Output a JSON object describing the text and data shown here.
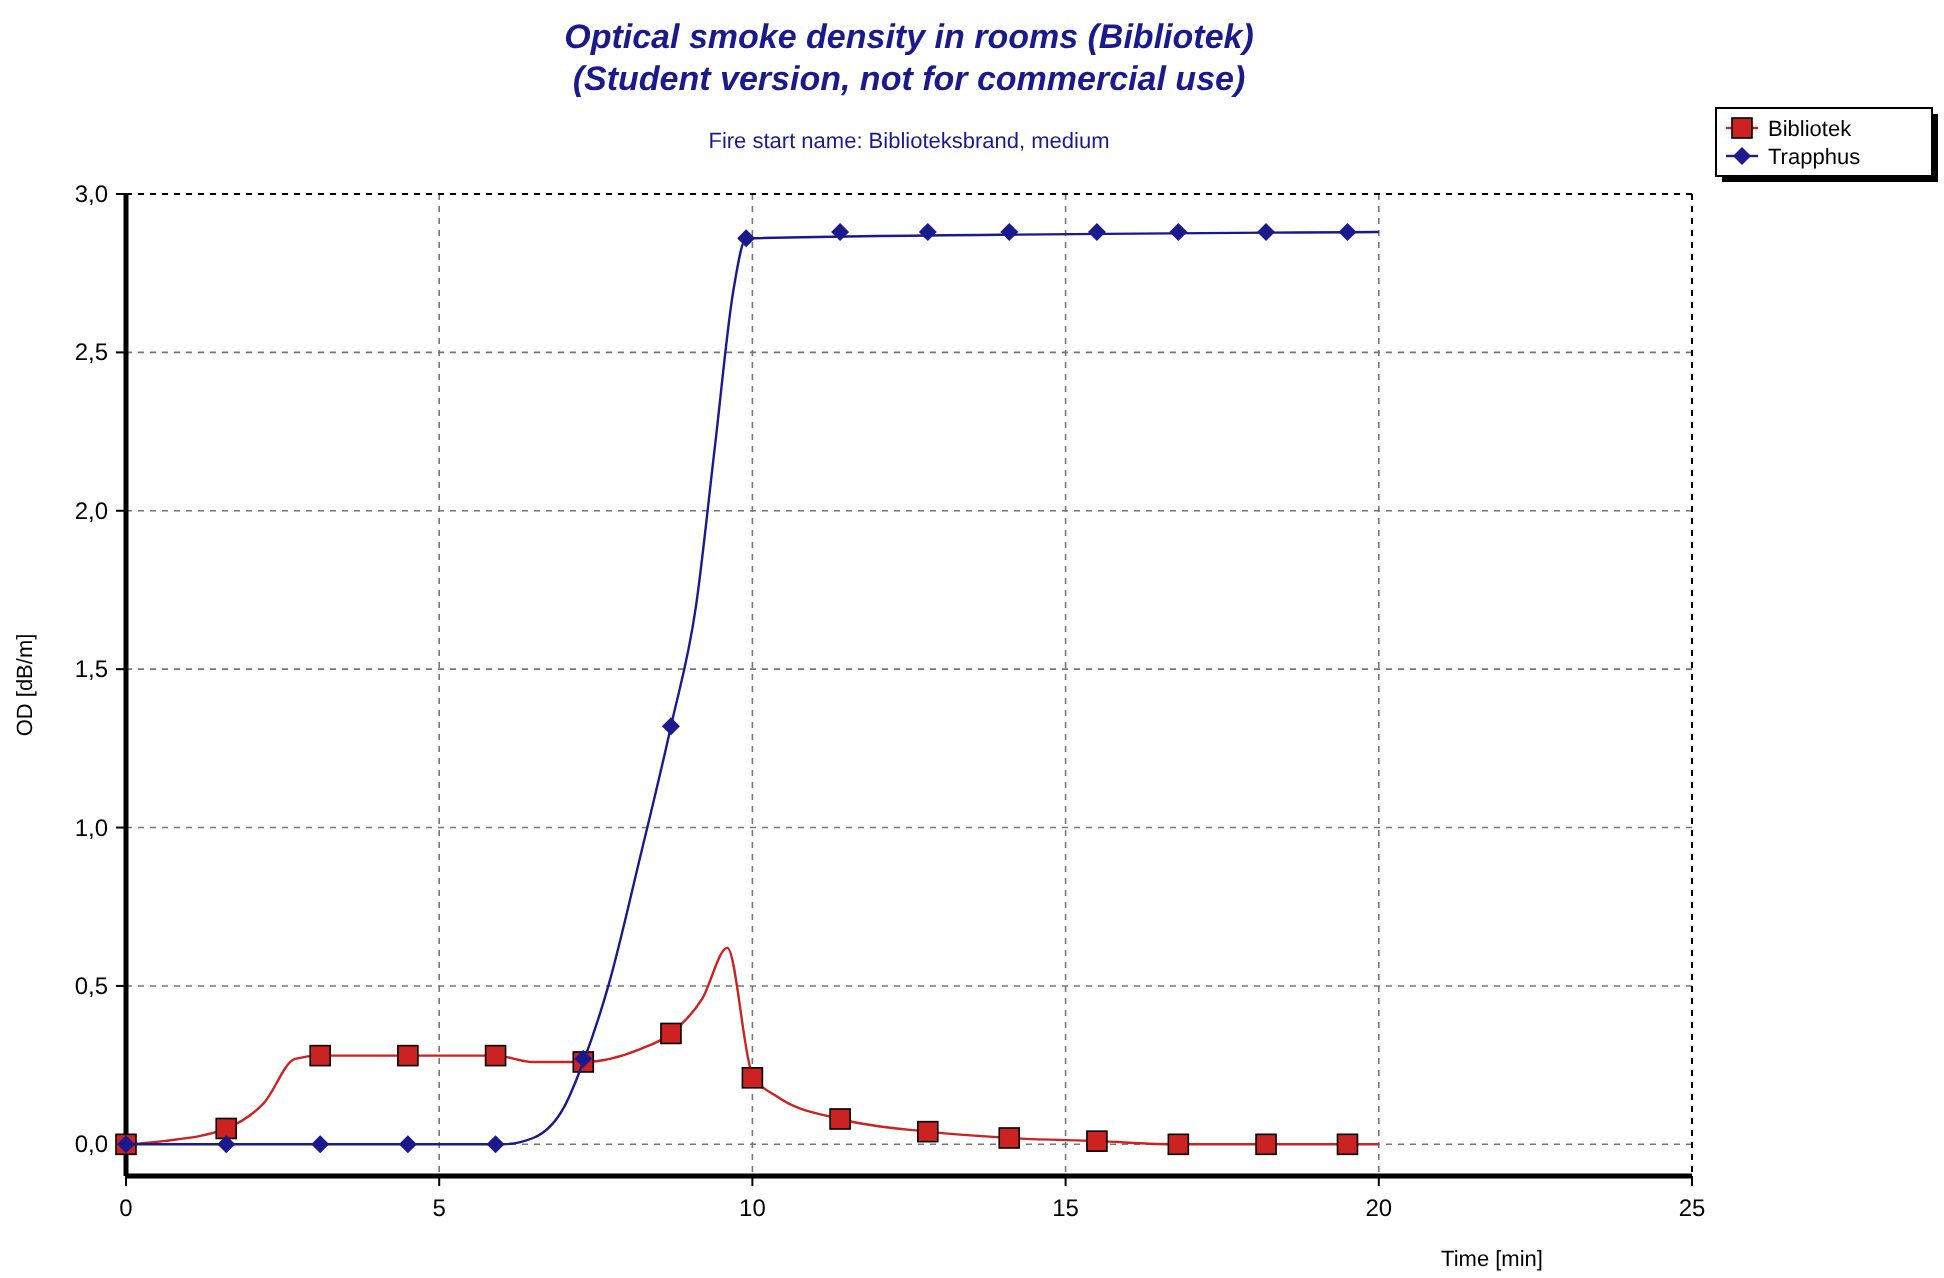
{
  "chart_data": {
    "type": "line",
    "title": "Optical smoke density in rooms   (Bibliotek)\n(Student version, not for commercial use)",
    "subtitle": "Fire start name:  Biblioteksbrand, medium",
    "xlabel": "Time [min]",
    "ylabel": "OD [dB/m]",
    "xlim": [
      0,
      25
    ],
    "xticks": [
      0,
      5,
      10,
      15,
      20,
      25
    ],
    "ylim": [
      -0.1,
      3.0
    ],
    "yticks": [
      {
        "value": 0,
        "label": "0,0"
      },
      {
        "value": 0.5,
        "label": "0,5"
      },
      {
        "value": 1,
        "label": "1,0"
      },
      {
        "value": 1.5,
        "label": "1,5"
      },
      {
        "value": 2,
        "label": "2,0"
      },
      {
        "value": 2.5,
        "label": "2,5"
      },
      {
        "value": 3,
        "label": "3,0"
      }
    ],
    "grid": true,
    "legend": "top right",
    "line_style": "solid",
    "series": [
      {
        "name": "Bibliotek",
        "color": "#cc2222",
        "marker": "none",
        "x": [
          0,
          0.6,
          1.6,
          2.2,
          2.7,
          3.1,
          5.9,
          6.5,
          7.3,
          8.2,
          8.7,
          9.2,
          9.6,
          10,
          10.4,
          11.4,
          12.8,
          14.1,
          15.5,
          16.8,
          20
        ],
        "values": [
          0,
          0.01,
          0.05,
          0.13,
          0.27,
          0.28,
          0.28,
          0.26,
          0.26,
          0.3,
          0.35,
          0.46,
          0.62,
          0.22,
          0.15,
          0.08,
          0.04,
          0.02,
          0.01,
          0,
          0
        ]
      },
      {
        "color": "#cc2222",
        "type": "scatter",
        "marker": "square",
        "x": [
          0,
          1.6,
          3.1,
          4.5,
          5.9,
          7.3,
          8.7,
          10,
          11.4,
          12.8,
          14.1,
          15.5,
          16.8,
          18.2,
          19.5
        ],
        "values": [
          0,
          0.05,
          0.28,
          0.28,
          0.28,
          0.26,
          0.35,
          0.21,
          0.08,
          0.04,
          0.02,
          0.01,
          0,
          0,
          0
        ]
      },
      {
        "name": "Trapphus",
        "color": "#1a1a8c",
        "marker": "none",
        "x": [
          0,
          6,
          6.5,
          7,
          7.3,
          7.7,
          8.2,
          8.7,
          9.1,
          9.4,
          9.7,
          9.9,
          20
        ],
        "values": [
          0,
          0,
          0.02,
          0.12,
          0.26,
          0.5,
          0.9,
          1.32,
          1.7,
          2.2,
          2.7,
          2.86,
          2.88
        ]
      },
      {
        "color": "#1a1a8c",
        "type": "scatter",
        "marker": "diamond",
        "x": [
          0,
          1.6,
          3.1,
          4.5,
          5.9,
          7.3,
          8.7,
          9.9,
          11.4,
          12.8,
          14.1,
          15.5,
          16.8,
          18.2,
          19.5
        ],
        "values": [
          0,
          0,
          0,
          0,
          0,
          0.27,
          1.32,
          2.86,
          2.88,
          2.88,
          2.88,
          2.88,
          2.88,
          2.88,
          2.88
        ]
      }
    ]
  }
}
